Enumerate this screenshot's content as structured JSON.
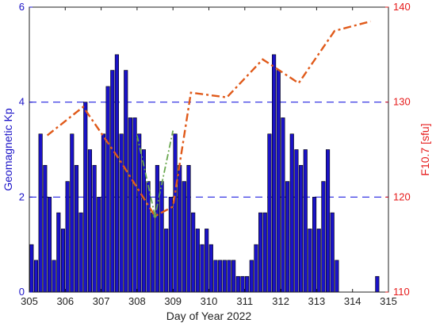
{
  "chart_data": {
    "type": "bar",
    "xlabel": "Day of Year 2022",
    "ylabel_left": "Geomagnetic  Kp",
    "ylabel_right": "F10.7  [sfu]",
    "xlim": [
      305,
      315
    ],
    "ylim_left": [
      0,
      6
    ],
    "ylim_right": [
      110,
      140
    ],
    "xticks": [
      "305",
      "306",
      "307",
      "308",
      "309",
      "310",
      "311",
      "312",
      "313",
      "314",
      "315"
    ],
    "yticks_left": [
      "0",
      "2",
      "4",
      "6"
    ],
    "yticks_right": [
      "110",
      "120",
      "130",
      "140"
    ],
    "gridlines_left": [
      2,
      4
    ],
    "grid_style": "dashed horizontal",
    "kp_bar_width": 0.1,
    "series": [
      {
        "axis": "left",
        "type": "bar",
        "x": [
          305.0625,
          305.1875,
          305.3125,
          305.4375,
          305.5625,
          305.6875,
          305.8125,
          305.9375,
          306.0625,
          306.1875,
          306.3125,
          306.4375,
          306.5625,
          306.6875,
          306.8125,
          306.9375,
          307.0625,
          307.1875,
          307.3125,
          307.4375,
          307.5625,
          307.6875,
          307.8125,
          307.9375,
          308.0625,
          308.1875,
          308.3125,
          308.4375,
          308.5625,
          308.6875,
          308.8125,
          308.9375,
          309.0625,
          309.1875,
          309.3125,
          309.4375,
          309.5625,
          309.6875,
          309.8125,
          309.9375,
          310.0625,
          310.1875,
          310.3125,
          310.4375,
          310.5625,
          310.6875,
          310.8125,
          310.9375,
          311.0625,
          311.1875,
          311.3125,
          311.4375,
          311.5625,
          311.6875,
          311.8125,
          311.9375,
          312.0625,
          312.1875,
          312.3125,
          312.4375,
          312.5625,
          312.6875,
          312.8125,
          312.9375,
          313.0625,
          313.1875,
          313.3125,
          313.4375,
          313.5625,
          314.6875
        ],
        "values": [
          1.0,
          0.67,
          3.33,
          2.67,
          2.0,
          0.67,
          1.67,
          1.33,
          2.33,
          3.33,
          2.67,
          1.67,
          4.0,
          3.0,
          2.67,
          2.0,
          3.33,
          4.33,
          4.67,
          5.0,
          3.33,
          4.67,
          3.67,
          3.67,
          3.33,
          3.0,
          2.33,
          1.67,
          2.67,
          2.33,
          1.33,
          2.0,
          3.33,
          2.67,
          2.33,
          2.67,
          1.67,
          1.33,
          1.0,
          1.33,
          1.0,
          0.67,
          0.67,
          0.67,
          0.67,
          0.67,
          0.33,
          0.33,
          0.33,
          0.67,
          1.0,
          1.67,
          1.67,
          3.33,
          5.0,
          4.67,
          3.67,
          2.33,
          3.33,
          3.0,
          2.67,
          3.0,
          1.33,
          2.0,
          1.33,
          2.33,
          3.0,
          1.67,
          0.67,
          0.33
        ]
      },
      {
        "axis": "right",
        "type": "line",
        "x": [
          305.5,
          306.5,
          307.5,
          308.5,
          309.0,
          309.5,
          310.5,
          311.5,
          312.5,
          313.5,
          314.5
        ],
        "values": [
          126.5,
          129.5,
          124.0,
          118.0,
          119.0,
          131.0,
          130.5,
          134.5,
          132.0,
          137.5,
          138.5
        ]
      },
      {
        "axis": "left",
        "type": "line",
        "x": [
          308.0,
          308.5,
          309.0
        ],
        "values": [
          3.3,
          1.6,
          3.4
        ]
      }
    ],
    "colors": {
      "bar_fill": "#1a12c7",
      "bar_edge": "#000000",
      "left_axis": "#1a12c7",
      "right_axis": "#e61a1a",
      "f107_line": "#e05a1a",
      "green_line": "#6aa84f",
      "grid": "#2020e0"
    }
  }
}
